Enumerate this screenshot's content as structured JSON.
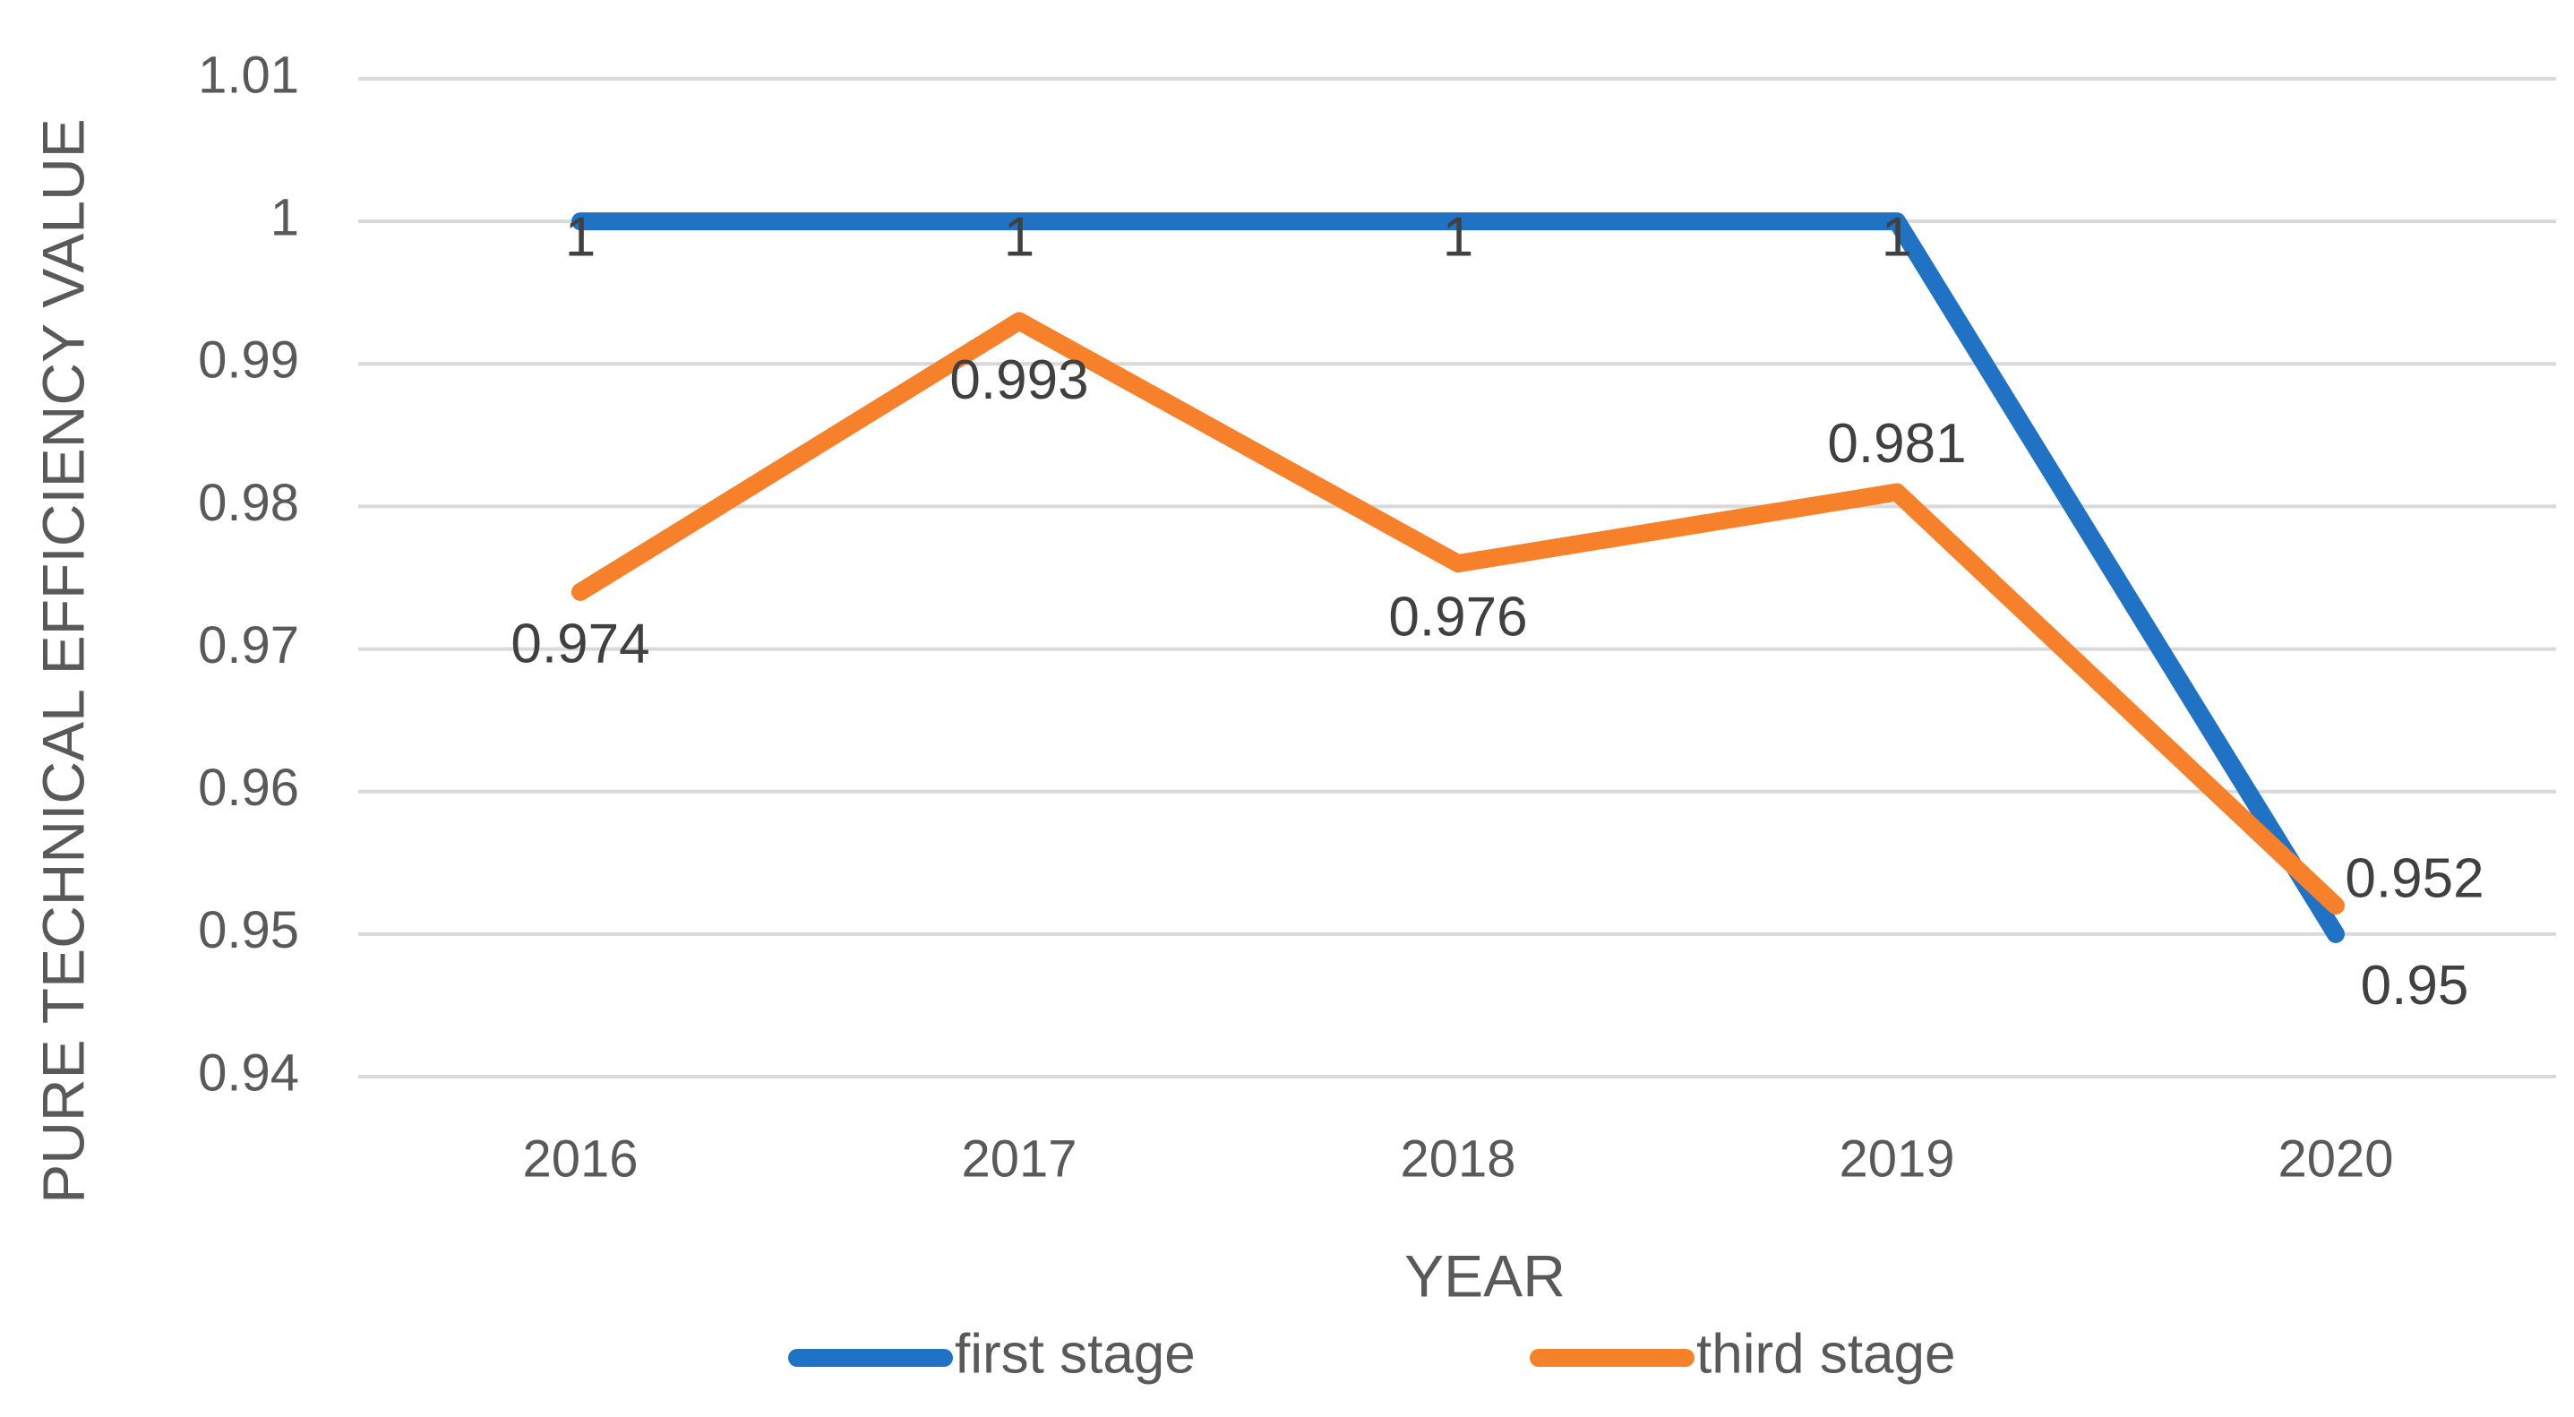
{
  "chart_data": {
    "type": "line",
    "title": "",
    "xlabel": "YEAR",
    "ylabel": "PURE TECHNICAL EFFICIENCY VALUE",
    "categories": [
      "2016",
      "2017",
      "2018",
      "2019",
      "2020"
    ],
    "ylim": [
      0.94,
      1.01
    ],
    "yticks": [
      0.94,
      0.95,
      0.96,
      0.97,
      0.98,
      0.99,
      1,
      1.01
    ],
    "ytick_labels": [
      "0.94",
      "0.95",
      "0.96",
      "0.97",
      "0.98",
      "0.99",
      "1",
      "1.01"
    ],
    "grid": true,
    "legend_position": "bottom",
    "series": [
      {
        "name": "first stage",
        "color": "#1f72c4",
        "values": [
          1,
          1,
          1,
          1,
          0.95
        ],
        "labels": [
          "1",
          "1",
          "1",
          "1",
          "0.95"
        ]
      },
      {
        "name": "third stage",
        "color": "#f7812a",
        "values": [
          0.974,
          0.993,
          0.976,
          0.981,
          0.952
        ],
        "labels": [
          "0.974",
          "0.993",
          "0.976",
          "0.981",
          "0.952"
        ]
      }
    ]
  }
}
